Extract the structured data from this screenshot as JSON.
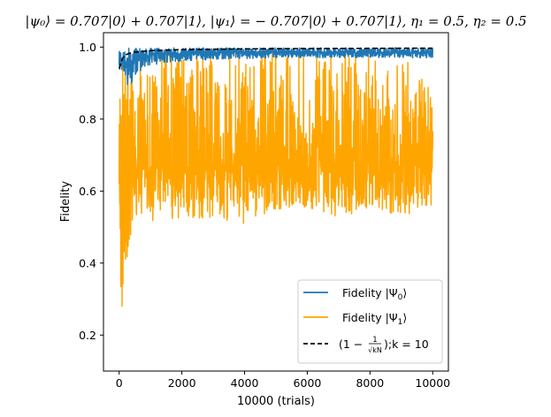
{
  "chart_data": {
    "type": "line",
    "title": "|ψ₀⟩ = 0.707|0⟩ + 0.707|1⟩, |ψ₁⟩ = − 0.707|0⟩ + 0.707|1⟩, η₁ = 0.5, η₂ = 0.5",
    "xlabel": "10000 (trials)",
    "ylabel": "Fidelity",
    "xlim": [
      -500,
      10500
    ],
    "ylim": [
      0.1,
      1.04
    ],
    "xticks": [
      0,
      2000,
      4000,
      6000,
      8000,
      10000
    ],
    "xtick_labels": [
      "0",
      "2000",
      "4000",
      "6000",
      "8000",
      "10000"
    ],
    "yticks": [
      0.2,
      0.4,
      0.6,
      0.8,
      1.0
    ],
    "ytick_labels": [
      "0.2",
      "0.4",
      "0.6",
      "0.8",
      "1.0"
    ],
    "grid": false,
    "legend_position": "lower right",
    "series": [
      {
        "name": "Fidelity |Ψ₀⟩",
        "color": "#1f77b4",
        "style": "solid",
        "kind": "noisy",
        "x": [
          0,
          100,
          200,
          300,
          400,
          600,
          800,
          1000,
          1500,
          2000,
          3000,
          4000,
          5000,
          6000,
          7000,
          8000,
          9000,
          10000
        ],
        "values": [
          0.95,
          0.96,
          0.94,
          0.955,
          0.96,
          0.97,
          0.975,
          0.978,
          0.98,
          0.982,
          0.984,
          0.985,
          0.985,
          0.986,
          0.985,
          0.985,
          0.984,
          0.984
        ],
        "low": [
          0.94,
          0.93,
          0.9,
          0.875,
          0.9,
          0.93,
          0.94,
          0.95,
          0.955,
          0.96,
          0.965,
          0.968,
          0.97,
          0.97,
          0.97,
          0.97,
          0.97,
          0.97
        ],
        "high": [
          0.99,
          0.998,
          0.998,
          0.998,
          0.998,
          0.998,
          0.998,
          0.998,
          0.998,
          0.998,
          0.998,
          0.998,
          0.998,
          0.998,
          0.998,
          0.998,
          0.998,
          0.998
        ]
      },
      {
        "name": "Fidelity |Ψ₁⟩",
        "color": "#ffa500",
        "style": "solid",
        "kind": "noisy",
        "x": [
          0,
          100,
          200,
          300,
          400,
          600,
          800,
          1000,
          1500,
          2000,
          3000,
          4000,
          5000,
          6000,
          7000,
          8000,
          9000,
          10000
        ],
        "values": [
          0.62,
          0.64,
          0.65,
          0.66,
          0.66,
          0.66,
          0.66,
          0.66,
          0.665,
          0.665,
          0.67,
          0.67,
          0.67,
          0.67,
          0.67,
          0.67,
          0.67,
          0.67
        ],
        "low": [
          0.55,
          0.15,
          0.38,
          0.34,
          0.5,
          0.52,
          0.54,
          0.52,
          0.5,
          0.53,
          0.52,
          0.51,
          0.55,
          0.55,
          0.52,
          0.55,
          0.53,
          0.55
        ],
        "high": [
          0.96,
          0.98,
          0.99,
          0.99,
          0.99,
          0.99,
          0.99,
          0.99,
          0.99,
          0.99,
          0.99,
          0.99,
          0.99,
          0.98,
          0.99,
          0.98,
          0.98,
          0.91
        ]
      },
      {
        "name": "(1 − 1/√(kN));k = 10",
        "color": "#000000",
        "style": "dashed",
        "kind": "formula",
        "k": 10,
        "x": [
          0,
          100,
          200,
          300,
          500,
          1000,
          2000,
          4000,
          6000,
          8000,
          10000
        ],
        "values": [
          0.94,
          0.968,
          0.978,
          0.982,
          0.986,
          0.99,
          0.993,
          0.995,
          0.996,
          0.9965,
          0.997
        ]
      }
    ]
  },
  "legend": {
    "items": [
      {
        "label_pre": "Fidelity |Ψ",
        "label_sub": "0",
        "label_post": "⟩"
      },
      {
        "label_pre": "Fidelity |Ψ",
        "label_sub": "1",
        "label_post": "⟩"
      },
      {
        "label_pre": "(1 −",
        "frac_num": "1",
        "frac_den": "√kN",
        "label_post": ");k = 10"
      }
    ]
  }
}
